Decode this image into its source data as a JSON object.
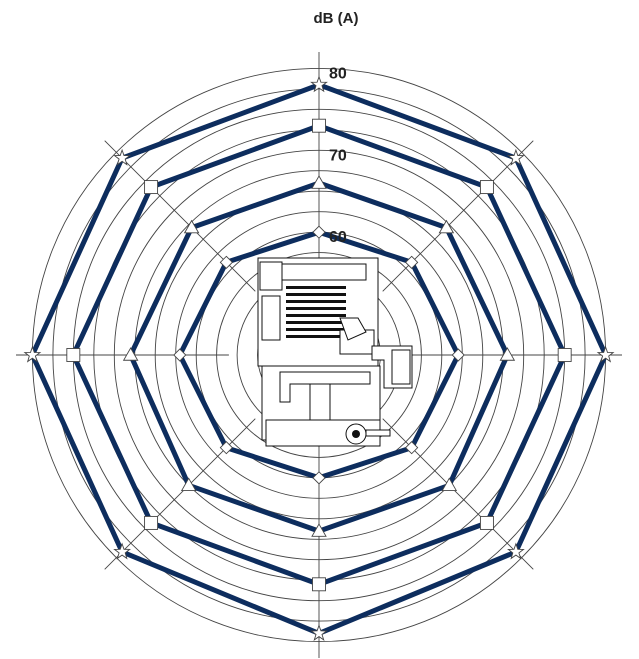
{
  "chart_data": {
    "type": "radar",
    "title": "dB (A)",
    "r_ticks": [
      {
        "value": 60,
        "label": "60"
      },
      {
        "value": 70,
        "label": "70"
      },
      {
        "value": 80,
        "label": "80"
      }
    ],
    "rlim": [
      45,
      82
    ],
    "ring_values": [
      50,
      52.5,
      55,
      57.5,
      60,
      62.5,
      65,
      67.5,
      70,
      72.5,
      75,
      77.5,
      80
    ],
    "directions": 8,
    "colors": {
      "line": "#0d2d5e",
      "grid": "#444444"
    },
    "series": [
      {
        "marker": "diamond",
        "values": [
          60,
          61,
          62,
          61,
          60,
          61,
          62,
          61
        ]
      },
      {
        "marker": "triangle",
        "values": [
          66,
          67,
          68,
          67.5,
          66.5,
          67.5,
          68,
          67
        ]
      },
      {
        "marker": "square",
        "values": [
          73,
          74,
          75,
          74,
          73,
          74,
          75,
          74
        ]
      },
      {
        "marker": "star",
        "values": [
          78,
          79,
          80,
          79,
          79,
          79,
          80,
          79
        ]
      }
    ]
  },
  "figure": {
    "center_icon": "engine-icon"
  }
}
